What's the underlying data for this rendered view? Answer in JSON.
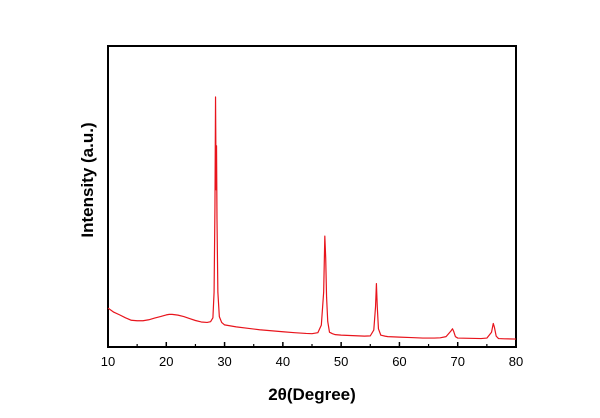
{
  "chart_data": {
    "type": "line",
    "xlabel": "2θ(Degree)",
    "ylabel": "Intensity (a.u.)",
    "xlim": [
      10,
      80
    ],
    "ylim": [
      0,
      100
    ],
    "x_ticks": [
      10,
      20,
      30,
      40,
      50,
      60,
      70,
      80
    ],
    "y_ticks_shown": false,
    "grid": false,
    "legend": "none",
    "series": [
      {
        "color": "#e8141c",
        "x": [
          10,
          11,
          12,
          13,
          14,
          15,
          16,
          17,
          18,
          19,
          20,
          20.5,
          21,
          22,
          23,
          24,
          25,
          26,
          27,
          27.6,
          28,
          28.2,
          28.35,
          28.45,
          28.55,
          28.62,
          28.7,
          28.85,
          29.1,
          29.5,
          30,
          31,
          32,
          34,
          36,
          38,
          40,
          42,
          44,
          45,
          46,
          46.6,
          47,
          47.2,
          47.35,
          47.5,
          47.7,
          48,
          48.5,
          49,
          50,
          52,
          54,
          55,
          55.6,
          55.9,
          56.05,
          56.2,
          56.4,
          56.8,
          57.5,
          58,
          60,
          62,
          64,
          66,
          67,
          68,
          68.8,
          69.1,
          69.3,
          69.6,
          70,
          72,
          74,
          75,
          75.8,
          76.1,
          76.3,
          76.6,
          77,
          78,
          80
        ],
        "y": [
          13.5,
          11.8,
          10.7,
          9.5,
          8.5,
          8.3,
          8.3,
          8.7,
          9.4,
          10.0,
          10.7,
          10.9,
          10.9,
          10.6,
          10.0,
          9.2,
          8.4,
          7.8,
          7.6,
          7.9,
          9.5,
          20,
          55,
          100,
          62,
          80,
          50,
          20,
          10,
          7.6,
          6.6,
          6.2,
          5.8,
          5.2,
          4.6,
          4.2,
          3.8,
          3.4,
          3.1,
          3.0,
          3.4,
          6.5,
          20,
          43,
          34,
          18,
          8,
          3.6,
          3.0,
          2.6,
          2.4,
          2.2,
          2.0,
          2.1,
          4.5,
          14,
          23.5,
          14,
          5,
          2.4,
          2.0,
          1.8,
          1.6,
          1.4,
          1.2,
          1.2,
          1.3,
          1.8,
          4.0,
          5.0,
          4.0,
          1.8,
          1.2,
          1.1,
          1.0,
          1.2,
          3.6,
          7.2,
          5.6,
          2.0,
          1.0,
          0.9,
          0.8
        ]
      }
    ]
  }
}
